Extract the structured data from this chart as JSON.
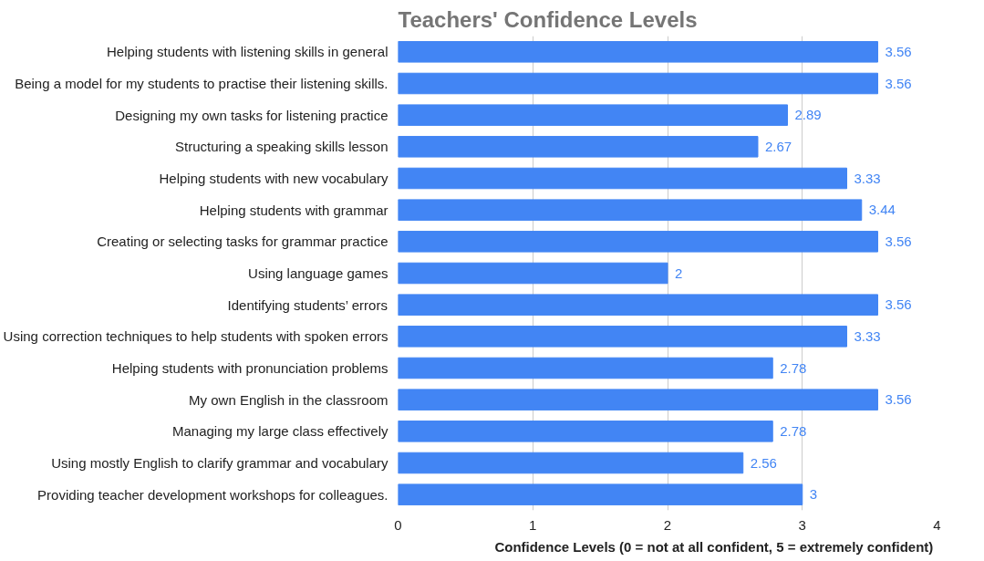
{
  "chart_data": {
    "type": "bar",
    "orientation": "horizontal",
    "title": "Teachers' Confidence Levels",
    "xlabel": "Confidence Levels  (0 = not at all confident, 5 = extremely confident)",
    "categories": [
      "Helping students with listening skills in general",
      "Being a model for my students to practise their listening skills.",
      "Designing my own tasks for listening practice",
      "Structuring a speaking skills lesson",
      "Helping students with new vocabulary",
      "Helping students with grammar",
      "Creating or selecting tasks for grammar practice",
      "Using language games",
      "Identifying students’ errors",
      "Using correction techniques to help students with spoken errors",
      "Helping students with pronunciation problems",
      "My own English in the classroom",
      "Managing my large class effectively",
      "Using mostly English to clarify grammar and vocabulary",
      "Providing teacher development workshops for colleagues."
    ],
    "values": [
      3.56,
      3.56,
      2.89,
      2.67,
      3.33,
      3.44,
      3.56,
      2,
      3.56,
      3.33,
      2.78,
      3.56,
      2.78,
      2.56,
      3
    ],
    "color": "#4285f4",
    "xlim": [
      0,
      4
    ],
    "xticks": [
      0,
      1,
      2,
      3,
      4
    ],
    "grid": "x",
    "data_labels": true
  }
}
